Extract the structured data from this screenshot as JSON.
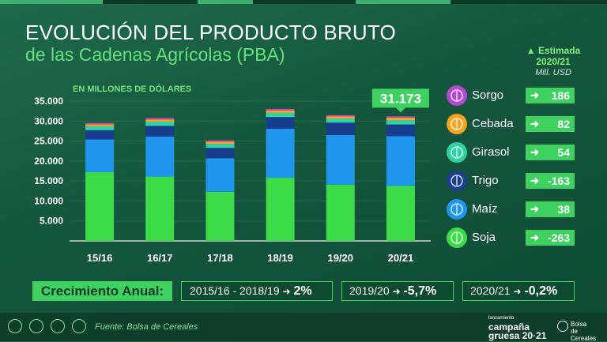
{
  "title": {
    "line1": "EVOLUCIÓN DEL PRODUCTO BRUTO",
    "line2": "de las Cadenas Agrícolas (PBA)"
  },
  "unit_label": "EN MILLONES DE DÓLARES",
  "chart_data": {
    "type": "bar",
    "stacked": true,
    "categories": [
      "15/16",
      "16/17",
      "17/18",
      "18/19",
      "19/20",
      "20/21"
    ],
    "yticks": [
      "35.000",
      "30.000",
      "25.000",
      "20.000",
      "15.000",
      "10.000",
      "5.000"
    ],
    "ylim": [
      0,
      35000
    ],
    "total_label": {
      "category": "20/21",
      "value": "31.173"
    },
    "series": [
      {
        "name": "Soja",
        "color": "#3ddb48",
        "values": [
          17200,
          16100,
          12300,
          15800,
          14100,
          13800
        ]
      },
      {
        "name": "Maíz",
        "color": "#1f95ee",
        "values": [
          8200,
          10000,
          8400,
          12300,
          12400,
          12400
        ]
      },
      {
        "name": "Trigo",
        "color": "#173d8c",
        "values": [
          2300,
          2700,
          2600,
          2900,
          3100,
          2950
        ]
      },
      {
        "name": "Girasol",
        "color": "#30d3a6",
        "values": [
          1000,
          1050,
          1000,
          1050,
          1000,
          1050
        ]
      },
      {
        "name": "Cebada",
        "color": "#f5a623",
        "values": [
          500,
          550,
          550,
          600,
          550,
          630
        ]
      },
      {
        "name": "Sorgo",
        "color": "#d63cc2",
        "values": [
          300,
          350,
          320,
          380,
          340,
          343
        ]
      }
    ]
  },
  "estimate": {
    "arrow": "▲",
    "line1": "Estimada",
    "line2": "2020/21",
    "line3": "Mill. USD"
  },
  "legend": [
    {
      "name": "Sorgo",
      "delta": "186",
      "color": "#b24ad0",
      "icon": "sorgo-icon"
    },
    {
      "name": "Cebada",
      "delta": "82",
      "color": "#f3a51f",
      "icon": "cebada-icon"
    },
    {
      "name": "Girasol",
      "delta": "54",
      "color": "#2fd0a4",
      "icon": "girasol-icon"
    },
    {
      "name": "Trigo",
      "delta": "-163",
      "color": "#1a3f8f",
      "icon": "trigo-icon"
    },
    {
      "name": "Maíz",
      "delta": "38",
      "color": "#1f95ee",
      "icon": "maiz-icon"
    },
    {
      "name": "Soja",
      "delta": "-263",
      "color": "#3ddb48",
      "icon": "soja-icon"
    }
  ],
  "growth": {
    "label": "Crecimiento Anual:",
    "arrow": "➜",
    "items": [
      {
        "period": "2015/16 - 2018/19",
        "value": "2%"
      },
      {
        "period": "2019/20",
        "value": "-5,7%"
      },
      {
        "period": "2020/21",
        "value": "-0,2%"
      }
    ]
  },
  "footer": {
    "source": "Fuente: Bolsa de Cereales",
    "brand_small": "lanzamiento",
    "brand_line1": "campaña",
    "brand_line2": "gruesa 20·21",
    "brand2_line1": "Bolsa",
    "brand2_line2": "de Cereales"
  }
}
